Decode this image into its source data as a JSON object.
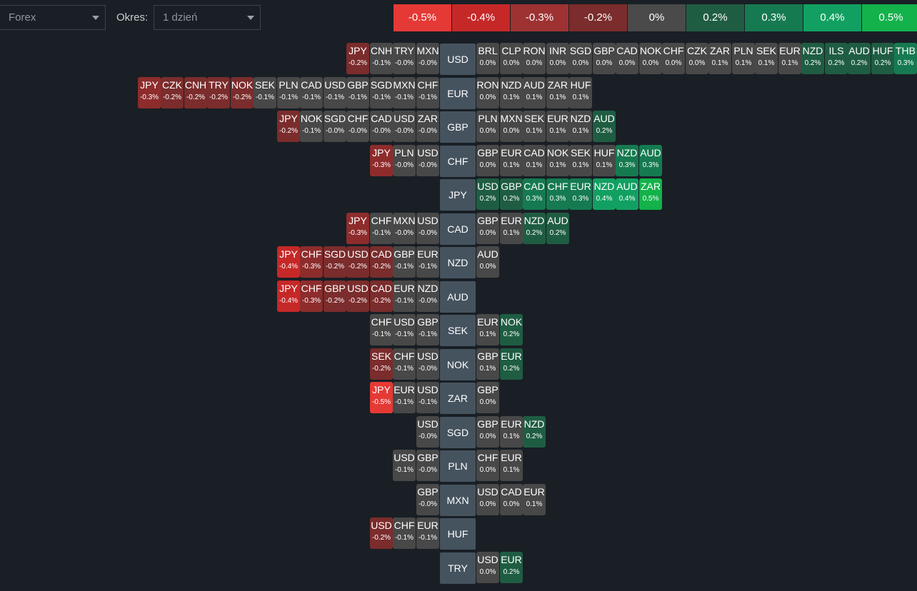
{
  "toolbar": {
    "market_value": "Forex",
    "period_label": "Okres:",
    "period_value": "1 dzień"
  },
  "legend": [
    {
      "label": "-0.5%",
      "color": "#e53935"
    },
    {
      "label": "-0.4%",
      "color": "#c62828"
    },
    {
      "label": "-0.3%",
      "color": "#9e3232"
    },
    {
      "label": "-0.2%",
      "color": "#7b2c2c"
    },
    {
      "label": "0%",
      "color": "#4a4a4a"
    },
    {
      "label": "0.2%",
      "color": "#1f5d43"
    },
    {
      "label": "0.3%",
      "color": "#167a50"
    },
    {
      "label": "0.4%",
      "color": "#12a062"
    },
    {
      "label": "0.5%",
      "color": "#13b24b"
    }
  ],
  "rows": [
    {
      "currency": "USD",
      "left": [
        [
          "JPY",
          "-0.2%"
        ],
        [
          "CNH",
          "-0.1%"
        ],
        [
          "TRY",
          "-0.0%"
        ],
        [
          "MXN",
          "-0.0%"
        ]
      ],
      "right": [
        [
          "BRL",
          "0.0%"
        ],
        [
          "CLP",
          "0.0%"
        ],
        [
          "RON",
          "0.0%"
        ],
        [
          "INR",
          "0.0%"
        ],
        [
          "SGD",
          "0.0%"
        ],
        [
          "GBP",
          "0.0%"
        ],
        [
          "CAD",
          "0.0%"
        ],
        [
          "NOK",
          "0.0%"
        ],
        [
          "CHF",
          "0.0%"
        ],
        [
          "CZK",
          "0.0%"
        ],
        [
          "ZAR",
          "0.1%"
        ],
        [
          "PLN",
          "0.1%"
        ],
        [
          "SEK",
          "0.1%"
        ],
        [
          "EUR",
          "0.1%"
        ],
        [
          "NZD",
          "0.2%"
        ],
        [
          "ILS",
          "0.2%"
        ],
        [
          "AUD",
          "0.2%"
        ],
        [
          "HUF",
          "0.2%"
        ],
        [
          "THB",
          "0.3%"
        ]
      ]
    },
    {
      "currency": "EUR",
      "left": [
        [
          "JPY",
          "-0.3%"
        ],
        [
          "CZK",
          "-0.2%"
        ],
        [
          "CNH",
          "-0.2%"
        ],
        [
          "TRY",
          "-0.2%"
        ],
        [
          "NOK",
          "-0.2%"
        ],
        [
          "SEK",
          "-0.1%"
        ],
        [
          "PLN",
          "-0.1%"
        ],
        [
          "CAD",
          "-0.1%"
        ],
        [
          "USD",
          "-0.1%"
        ],
        [
          "GBP",
          "-0.1%"
        ],
        [
          "SGD",
          "-0.1%"
        ],
        [
          "MXN",
          "-0.1%"
        ],
        [
          "CHF",
          "-0.1%"
        ]
      ],
      "right": [
        [
          "RON",
          "0.0%"
        ],
        [
          "NZD",
          "0.1%"
        ],
        [
          "AUD",
          "0.1%"
        ],
        [
          "ZAR",
          "0.1%"
        ],
        [
          "HUF",
          "0.1%"
        ]
      ]
    },
    {
      "currency": "GBP",
      "left": [
        [
          "JPY",
          "-0.2%"
        ],
        [
          "NOK",
          "-0.1%"
        ],
        [
          "SGD",
          "-0.0%"
        ],
        [
          "CHF",
          "-0.0%"
        ],
        [
          "CAD",
          "-0.0%"
        ],
        [
          "USD",
          "-0.0%"
        ],
        [
          "ZAR",
          "-0.0%"
        ]
      ],
      "right": [
        [
          "PLN",
          "0.0%"
        ],
        [
          "MXN",
          "0.0%"
        ],
        [
          "SEK",
          "0.1%"
        ],
        [
          "EUR",
          "0.1%"
        ],
        [
          "NZD",
          "0.1%"
        ],
        [
          "AUD",
          "0.2%"
        ]
      ]
    },
    {
      "currency": "CHF",
      "left": [
        [
          "JPY",
          "-0.3%"
        ],
        [
          "PLN",
          "-0.0%"
        ],
        [
          "USD",
          "-0.0%"
        ]
      ],
      "right": [
        [
          "GBP",
          "0.0%"
        ],
        [
          "EUR",
          "0.1%"
        ],
        [
          "CAD",
          "0.1%"
        ],
        [
          "NOK",
          "0.1%"
        ],
        [
          "SEK",
          "0.1%"
        ],
        [
          "HUF",
          "0.1%"
        ],
        [
          "NZD",
          "0.3%"
        ],
        [
          "AUD",
          "0.3%"
        ]
      ]
    },
    {
      "currency": "JPY",
      "left": [],
      "right": [
        [
          "USD",
          "0.2%"
        ],
        [
          "GBP",
          "0.2%"
        ],
        [
          "CAD",
          "0.3%"
        ],
        [
          "CHF",
          "0.3%"
        ],
        [
          "EUR",
          "0.3%"
        ],
        [
          "NZD",
          "0.4%"
        ],
        [
          "AUD",
          "0.4%"
        ],
        [
          "ZAR",
          "0.5%"
        ]
      ]
    },
    {
      "currency": "CAD",
      "left": [
        [
          "JPY",
          "-0.3%"
        ],
        [
          "CHF",
          "-0.1%"
        ],
        [
          "MXN",
          "-0.0%"
        ],
        [
          "USD",
          "-0.0%"
        ]
      ],
      "right": [
        [
          "GBP",
          "0.0%"
        ],
        [
          "EUR",
          "0.1%"
        ],
        [
          "NZD",
          "0.2%"
        ],
        [
          "AUD",
          "0.2%"
        ]
      ]
    },
    {
      "currency": "NZD",
      "left": [
        [
          "JPY",
          "-0.4%"
        ],
        [
          "CHF",
          "-0.3%"
        ],
        [
          "SGD",
          "-0.2%"
        ],
        [
          "USD",
          "-0.2%"
        ],
        [
          "CAD",
          "-0.2%"
        ],
        [
          "GBP",
          "-0.1%"
        ],
        [
          "EUR",
          "-0.1%"
        ]
      ],
      "right": [
        [
          "AUD",
          "0.0%"
        ]
      ]
    },
    {
      "currency": "AUD",
      "left": [
        [
          "JPY",
          "-0.4%"
        ],
        [
          "CHF",
          "-0.3%"
        ],
        [
          "GBP",
          "-0.2%"
        ],
        [
          "USD",
          "-0.2%"
        ],
        [
          "CAD",
          "-0.2%"
        ],
        [
          "EUR",
          "-0.1%"
        ],
        [
          "NZD",
          "-0.0%"
        ]
      ],
      "right": []
    },
    {
      "currency": "SEK",
      "left": [
        [
          "CHF",
          "-0.1%"
        ],
        [
          "USD",
          "-0.1%"
        ],
        [
          "GBP",
          "-0.1%"
        ]
      ],
      "right": [
        [
          "EUR",
          "0.1%"
        ],
        [
          "NOK",
          "0.2%"
        ]
      ]
    },
    {
      "currency": "NOK",
      "left": [
        [
          "SEK",
          "-0.2%"
        ],
        [
          "CHF",
          "-0.1%"
        ],
        [
          "USD",
          "-0.0%"
        ]
      ],
      "right": [
        [
          "GBP",
          "0.1%"
        ],
        [
          "EUR",
          "0.2%"
        ]
      ]
    },
    {
      "currency": "ZAR",
      "left": [
        [
          "JPY",
          "-0.5%"
        ],
        [
          "EUR",
          "-0.1%"
        ],
        [
          "USD",
          "-0.1%"
        ]
      ],
      "right": [
        [
          "GBP",
          "0.0%"
        ]
      ]
    },
    {
      "currency": "SGD",
      "left": [
        [
          "USD",
          "-0.0%"
        ]
      ],
      "right": [
        [
          "GBP",
          "0.0%"
        ],
        [
          "EUR",
          "0.1%"
        ],
        [
          "NZD",
          "0.2%"
        ]
      ]
    },
    {
      "currency": "PLN",
      "left": [
        [
          "USD",
          "-0.1%"
        ],
        [
          "GBP",
          "-0.0%"
        ]
      ],
      "right": [
        [
          "CHF",
          "0.0%"
        ],
        [
          "EUR",
          "0.1%"
        ]
      ]
    },
    {
      "currency": "MXN",
      "left": [
        [
          "GBP",
          "-0.0%"
        ]
      ],
      "right": [
        [
          "USD",
          "0.0%"
        ],
        [
          "CAD",
          "0.0%"
        ],
        [
          "EUR",
          "0.1%"
        ]
      ]
    },
    {
      "currency": "HUF",
      "left": [
        [
          "USD",
          "-0.2%"
        ],
        [
          "CHF",
          "-0.1%"
        ],
        [
          "EUR",
          "-0.1%"
        ]
      ],
      "right": []
    },
    {
      "currency": "TRY",
      "left": [],
      "right": [
        [
          "USD",
          "0.0%"
        ],
        [
          "EUR",
          "0.2%"
        ]
      ]
    }
  ]
}
